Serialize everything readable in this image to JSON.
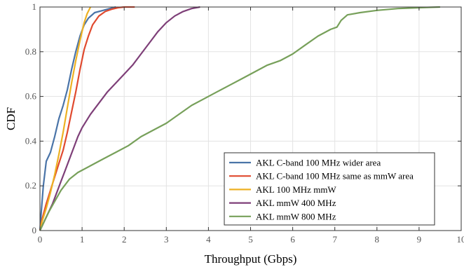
{
  "chart_data": {
    "type": "line",
    "xlabel": "Throughput (Gbps)",
    "ylabel": "CDF",
    "xlim": [
      0,
      10
    ],
    "ylim": [
      0,
      1
    ],
    "x_ticks": [
      "0",
      "1",
      "2",
      "3",
      "4",
      "5",
      "6",
      "7",
      "8",
      "9",
      "10"
    ],
    "y_ticks": [
      "0",
      "0.2",
      "0.4",
      "0.6",
      "0.8",
      "1"
    ],
    "grid": true,
    "legend_position": "bottom-right",
    "series": [
      {
        "name": "AKL C-band 100 MHz wider area",
        "color": "#4A74A8",
        "points": [
          [
            0,
            0
          ],
          [
            0.03,
            0.08
          ],
          [
            0.08,
            0.2
          ],
          [
            0.15,
            0.31
          ],
          [
            0.25,
            0.35
          ],
          [
            0.35,
            0.42
          ],
          [
            0.45,
            0.5
          ],
          [
            0.55,
            0.56
          ],
          [
            0.65,
            0.63
          ],
          [
            0.75,
            0.72
          ],
          [
            0.85,
            0.8
          ],
          [
            0.95,
            0.87
          ],
          [
            1.05,
            0.92
          ],
          [
            1.15,
            0.95
          ],
          [
            1.3,
            0.975
          ],
          [
            1.5,
            0.985
          ],
          [
            1.7,
            0.995
          ],
          [
            1.8,
            1.0
          ]
        ]
      },
      {
        "name": "AKL C-band 100 MHz same as mmW area",
        "color": "#E04A2F",
        "points": [
          [
            0,
            0
          ],
          [
            0.05,
            0.05
          ],
          [
            0.15,
            0.12
          ],
          [
            0.25,
            0.18
          ],
          [
            0.35,
            0.24
          ],
          [
            0.45,
            0.3
          ],
          [
            0.55,
            0.36
          ],
          [
            0.65,
            0.44
          ],
          [
            0.75,
            0.53
          ],
          [
            0.85,
            0.62
          ],
          [
            0.95,
            0.72
          ],
          [
            1.05,
            0.81
          ],
          [
            1.15,
            0.87
          ],
          [
            1.25,
            0.92
          ],
          [
            1.4,
            0.96
          ],
          [
            1.55,
            0.98
          ],
          [
            1.7,
            0.99
          ],
          [
            1.85,
            0.997
          ],
          [
            2.0,
            1.0
          ],
          [
            2.25,
            1.0
          ]
        ]
      },
      {
        "name": "AKL 100 MHz mmW",
        "color": "#EDB123",
        "points": [
          [
            0,
            0
          ],
          [
            0.05,
            0.04
          ],
          [
            0.15,
            0.1
          ],
          [
            0.25,
            0.17
          ],
          [
            0.35,
            0.25
          ],
          [
            0.45,
            0.34
          ],
          [
            0.55,
            0.44
          ],
          [
            0.65,
            0.55
          ],
          [
            0.75,
            0.66
          ],
          [
            0.85,
            0.76
          ],
          [
            0.95,
            0.85
          ],
          [
            1.05,
            0.93
          ],
          [
            1.12,
            0.97
          ],
          [
            1.2,
            1.0
          ]
        ]
      },
      {
        "name": "AKL mmW 400 MHz",
        "color": "#7E3F78",
        "points": [
          [
            0,
            0
          ],
          [
            0.1,
            0.04
          ],
          [
            0.2,
            0.08
          ],
          [
            0.3,
            0.12
          ],
          [
            0.4,
            0.17
          ],
          [
            0.5,
            0.22
          ],
          [
            0.6,
            0.27
          ],
          [
            0.7,
            0.32
          ],
          [
            0.8,
            0.37
          ],
          [
            0.9,
            0.42
          ],
          [
            1.0,
            0.46
          ],
          [
            1.2,
            0.52
          ],
          [
            1.4,
            0.57
          ],
          [
            1.6,
            0.62
          ],
          [
            1.8,
            0.66
          ],
          [
            2.0,
            0.7
          ],
          [
            2.2,
            0.74
          ],
          [
            2.4,
            0.79
          ],
          [
            2.6,
            0.84
          ],
          [
            2.8,
            0.89
          ],
          [
            3.0,
            0.93
          ],
          [
            3.2,
            0.96
          ],
          [
            3.4,
            0.98
          ],
          [
            3.6,
            0.993
          ],
          [
            3.8,
            1.0
          ]
        ]
      },
      {
        "name": "AKL mmW 800 MHz",
        "color": "#77A05A",
        "points": [
          [
            0,
            0
          ],
          [
            0.1,
            0.04
          ],
          [
            0.2,
            0.08
          ],
          [
            0.35,
            0.13
          ],
          [
            0.5,
            0.18
          ],
          [
            0.7,
            0.23
          ],
          [
            0.9,
            0.26
          ],
          [
            1.2,
            0.29
          ],
          [
            1.5,
            0.32
          ],
          [
            1.8,
            0.35
          ],
          [
            2.1,
            0.38
          ],
          [
            2.4,
            0.42
          ],
          [
            2.7,
            0.45
          ],
          [
            3.0,
            0.48
          ],
          [
            3.3,
            0.52
          ],
          [
            3.6,
            0.56
          ],
          [
            3.9,
            0.59
          ],
          [
            4.2,
            0.62
          ],
          [
            4.5,
            0.65
          ],
          [
            4.8,
            0.68
          ],
          [
            5.1,
            0.71
          ],
          [
            5.4,
            0.74
          ],
          [
            5.7,
            0.76
          ],
          [
            6.0,
            0.79
          ],
          [
            6.3,
            0.83
          ],
          [
            6.6,
            0.87
          ],
          [
            6.9,
            0.9
          ],
          [
            7.05,
            0.91
          ],
          [
            7.15,
            0.94
          ],
          [
            7.3,
            0.965
          ],
          [
            7.6,
            0.975
          ],
          [
            8.0,
            0.985
          ],
          [
            8.5,
            0.993
          ],
          [
            9.0,
            0.997
          ],
          [
            9.5,
            1.0
          ]
        ]
      }
    ]
  }
}
